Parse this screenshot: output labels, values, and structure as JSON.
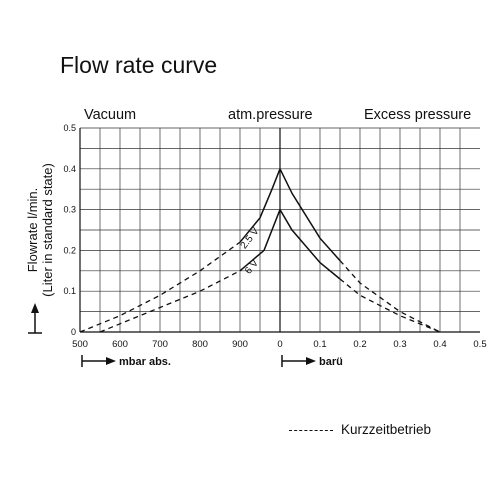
{
  "chart_data": {
    "type": "line",
    "title": "Flow rate curve",
    "ylabel": "Flowrate l/min.",
    "ylabel_sub": "(Liter in standard state)",
    "regions": [
      "Vacuum",
      "atm.pressure",
      "Excess pressure"
    ],
    "ylim": [
      0,
      0.5
    ],
    "yticks": [
      "0",
      "0.1",
      "0.2",
      "0.3",
      "0.4",
      "0.5"
    ],
    "vacuum_axis": {
      "label": "mbar abs.",
      "range": [
        500,
        1000
      ],
      "ticks": [
        "500",
        "600",
        "700",
        "800",
        "900"
      ]
    },
    "pressure_axis": {
      "label": "barü",
      "range": [
        0,
        0.5
      ],
      "ticks": [
        "0",
        "0.1",
        "0.2",
        "0.3",
        "0.4",
        "0.5"
      ]
    },
    "grid": true,
    "series": [
      {
        "name": "2.5 V",
        "vacuum": [
          [
            500,
            0.0
          ],
          [
            600,
            0.04
          ],
          [
            700,
            0.09
          ],
          [
            800,
            0.15
          ],
          [
            900,
            0.22
          ],
          [
            950,
            0.28
          ],
          [
            980,
            0.35
          ],
          [
            1000,
            0.4
          ]
        ],
        "pressure": [
          [
            0.0,
            0.4
          ],
          [
            0.03,
            0.34
          ],
          [
            0.1,
            0.23
          ],
          [
            0.2,
            0.12
          ],
          [
            0.3,
            0.05
          ],
          [
            0.4,
            0.0
          ]
        ],
        "dashed_vacuum_below": 900,
        "dashed_pressure_above": 0.15
      },
      {
        "name": "6 V",
        "vacuum": [
          [
            550,
            0.0
          ],
          [
            600,
            0.02
          ],
          [
            700,
            0.06
          ],
          [
            800,
            0.1
          ],
          [
            900,
            0.15
          ],
          [
            960,
            0.2
          ],
          [
            1000,
            0.3
          ]
        ],
        "pressure": [
          [
            0.0,
            0.3
          ],
          [
            0.03,
            0.25
          ],
          [
            0.1,
            0.17
          ],
          [
            0.2,
            0.09
          ],
          [
            0.3,
            0.04
          ],
          [
            0.4,
            0.0
          ]
        ],
        "dashed_vacuum_below": 900,
        "dashed_pressure_above": 0.15
      }
    ],
    "legend": {
      "label": "Kurzzeitbetrieb",
      "style": "dashed",
      "placement": "bottom-right"
    }
  }
}
